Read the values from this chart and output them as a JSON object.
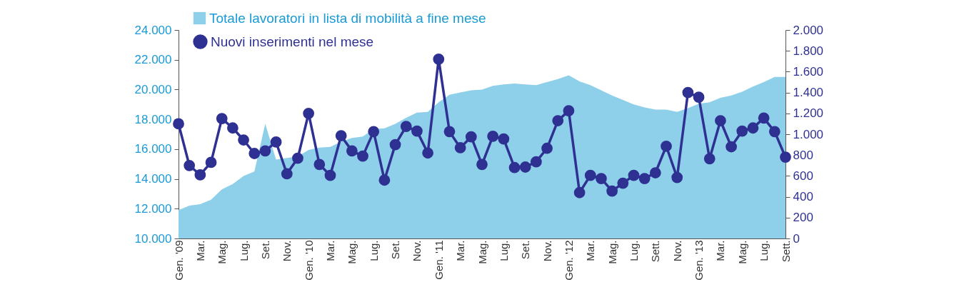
{
  "chart_data": {
    "type": "line",
    "categories": [
      "Gen. '09",
      null,
      "Mar.",
      null,
      "Mag.",
      null,
      "Lug.",
      null,
      "Set.",
      null,
      "Nov.",
      null,
      "Gen. '10",
      null,
      "Mar.",
      null,
      "Mag.",
      null,
      "Lug.",
      null,
      "Set.",
      null,
      "Nov.",
      null,
      "Gen. '11",
      null,
      "Mar.",
      null,
      "Mag.",
      null,
      "Lug.",
      null,
      "Set.",
      null,
      "Nov.",
      null,
      "Gen. '12",
      null,
      "Mar.",
      null,
      "Mag.",
      null,
      "Lug.",
      null,
      "Sett.",
      null,
      "Nov.",
      null,
      "Gen. '13",
      null,
      "Mar.",
      null,
      "Mag.",
      null,
      "Lug.",
      null,
      "Sett."
    ],
    "series": [
      {
        "name": "Totale lavoratori in lista di mobilità a fine mese",
        "type": "area",
        "color": "#8ecfea",
        "values": [
          11900,
          12200,
          12300,
          12600,
          13300,
          13650,
          14200,
          14500,
          17700,
          15300,
          15400,
          15500,
          15950,
          16100,
          16150,
          16500,
          16750,
          16850,
          17350,
          17400,
          17700,
          18100,
          18450,
          18500,
          19150,
          19650,
          19800,
          19950,
          20000,
          20250,
          20350,
          20400,
          20350,
          20300,
          20500,
          20700,
          20950,
          20550,
          20300,
          19950,
          19600,
          19300,
          19000,
          18800,
          18650,
          18650,
          18500,
          18750,
          19050,
          19150,
          19450,
          19600,
          19850,
          20200,
          20500,
          20850,
          20850
        ]
      },
      {
        "name": "Nuovi inserimenti nel mese",
        "axis": "y2",
        "marker": "circle",
        "color": "#2e3192",
        "values": [
          1100,
          700,
          610,
          730,
          1150,
          1060,
          945,
          815,
          840,
          925,
          620,
          770,
          1200,
          710,
          605,
          985,
          840,
          790,
          1025,
          560,
          900,
          1075,
          1030,
          820,
          1720,
          1025,
          870,
          975,
          710,
          980,
          955,
          680,
          685,
          735,
          865,
          1130,
          1225,
          440,
          605,
          575,
          455,
          530,
          605,
          575,
          630,
          885,
          585,
          1400,
          1355,
          765,
          1130,
          880,
          1030,
          1060,
          1155,
          1025,
          780
        ]
      }
    ],
    "ylim": [
      10000,
      24000
    ],
    "yticks": [
      {
        "value": 10000,
        "label": "10.000"
      },
      {
        "value": 12000,
        "label": "12.000"
      },
      {
        "value": 14000,
        "label": "14.000"
      },
      {
        "value": 16000,
        "label": "16.000"
      },
      {
        "value": 18000,
        "label": "18.000"
      },
      {
        "value": 20000,
        "label": "20.000"
      },
      {
        "value": 22000,
        "label": "22.000"
      },
      {
        "value": 24000,
        "label": "24.000"
      }
    ],
    "y2lim": [
      0,
      2000
    ],
    "y2ticks": [
      0,
      200,
      400,
      600,
      800,
      {
        "value": 1000,
        "label": "1.000"
      },
      {
        "value": 1200,
        "label": "1.200"
      },
      {
        "value": 1400,
        "label": "1.400"
      },
      {
        "value": 1600,
        "label": "1.600"
      },
      {
        "value": 1800,
        "label": "1.800"
      },
      {
        "value": 2000,
        "label": "2.000"
      }
    ],
    "legend": "top left",
    "grid": false
  }
}
